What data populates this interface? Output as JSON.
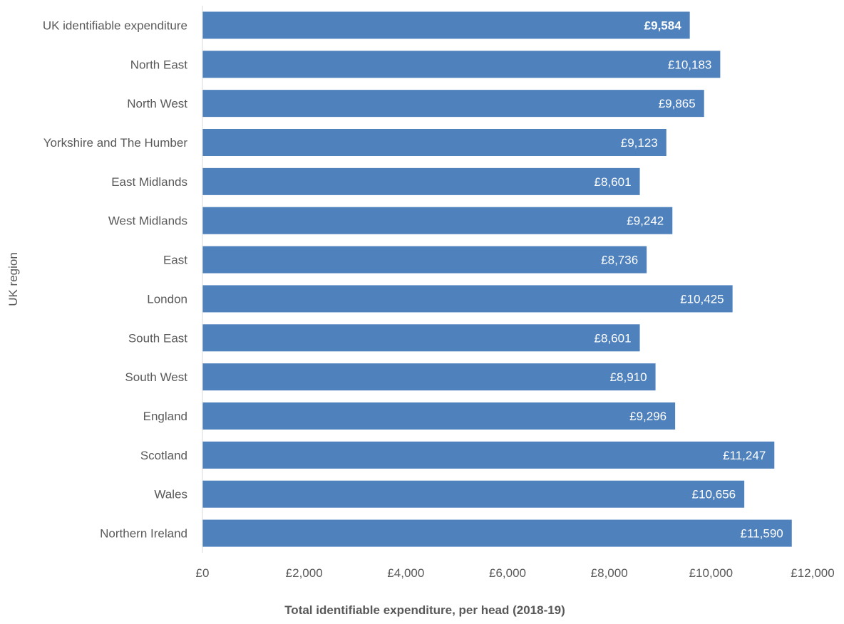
{
  "chart_data": {
    "type": "bar",
    "orientation": "horizontal",
    "title": "",
    "xlabel": "Total identifiable expenditure, per head (2018-19)",
    "ylabel": "UK region",
    "categories": [
      "UK identifiable expenditure",
      "North East",
      "North West",
      "Yorkshire and The Humber",
      "East Midlands",
      "West Midlands",
      "East",
      "London",
      "South East",
      "South West",
      "England",
      "Scotland",
      "Wales",
      "Northern Ireland"
    ],
    "values": [
      9584,
      10183,
      9865,
      9123,
      8601,
      9242,
      8736,
      10425,
      8601,
      8910,
      9296,
      11247,
      10656,
      11590
    ],
    "data_labels": [
      "£9,584",
      "£10,183",
      "£9,865",
      "£9,123",
      "£8,601",
      "£9,242",
      "£8,736",
      "£10,425",
      "£8,601",
      "£8,910",
      "£9,296",
      "£11,247",
      "£10,656",
      "£11,590"
    ],
    "bold_label_index": 0,
    "xlim": [
      0,
      12000
    ],
    "xticks": [
      0,
      2000,
      4000,
      6000,
      8000,
      10000,
      12000
    ],
    "xtick_labels": [
      "£0",
      "£2,000",
      "£4,000",
      "£6,000",
      "£8,000",
      "£10,000",
      "£12,000"
    ],
    "grid": false,
    "legend": "none",
    "bar_color": "#4f81bd"
  }
}
